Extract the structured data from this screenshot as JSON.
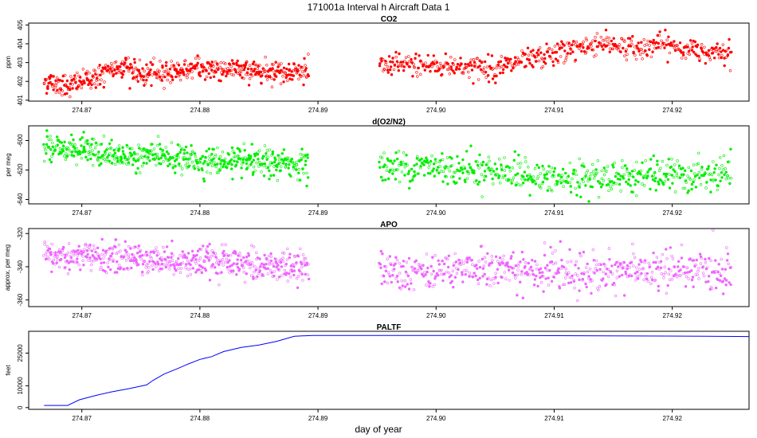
{
  "page_title": "171001a   Interval h Aircraft Data 1",
  "xlabel": "day of year",
  "colors": {
    "co2": "#ff0000",
    "o2n2": "#00ee00",
    "apo": "#ee66ff",
    "paltf": "#0000ff",
    "axis": "#000000"
  },
  "chart_data": [
    {
      "type": "scatter",
      "title": "CO2",
      "ylabel": "ppm",
      "xlim": [
        274.8655,
        274.9265
      ],
      "ylim": [
        400.95,
        405.1
      ],
      "x_ticks": [
        "274.87",
        "274.88",
        "274.89",
        "274.90",
        "274.91",
        "274.92"
      ],
      "x_tick_values": [
        274.87,
        274.88,
        274.89,
        274.9,
        274.91,
        274.92
      ],
      "y_ticks": [
        "401",
        "402",
        "403",
        "404",
        "405"
      ],
      "y_tick_values": [
        401,
        402,
        403,
        404,
        405
      ],
      "series_segments": [
        {
          "x_range": [
            274.8668,
            274.8892
          ],
          "trend_x": [
            274.8668,
            274.869,
            274.872,
            274.8735,
            274.875,
            274.877,
            274.88,
            274.884,
            274.8892
          ],
          "trend_y": [
            402.0,
            401.8,
            402.4,
            402.9,
            402.3,
            402.5,
            402.7,
            402.6,
            402.5
          ],
          "noise": 0.3
        },
        {
          "x_range": [
            274.8952,
            274.925
          ],
          "trend_x": [
            274.8952,
            274.898,
            274.902,
            274.905,
            274.908,
            274.911,
            274.914,
            274.917,
            274.919,
            274.922,
            274.925
          ],
          "trend_y": [
            402.8,
            402.9,
            402.8,
            402.7,
            403.1,
            403.6,
            404.1,
            403.7,
            404.0,
            403.6,
            403.7
          ],
          "noise": 0.3
        }
      ],
      "n_points_per_segment": 540
    },
    {
      "type": "scatter",
      "title": "d(O2/N2)",
      "ylabel": "per meg",
      "xlim": [
        274.8655,
        274.9265
      ],
      "ylim": [
        -643,
        -590
      ],
      "x_ticks": [
        "274.87",
        "274.88",
        "274.89",
        "274.90",
        "274.91",
        "274.92"
      ],
      "x_tick_values": [
        274.87,
        274.88,
        274.89,
        274.9,
        274.91,
        274.92
      ],
      "y_ticks": [
        "-600",
        "-620",
        "-640"
      ],
      "y_tick_values": [
        -600,
        -620,
        -640
      ],
      "series_segments": [
        {
          "x_range": [
            274.8668,
            274.8892
          ],
          "trend_x": [
            274.8668,
            274.869,
            274.873,
            274.876,
            274.88,
            274.884,
            274.8892
          ],
          "trend_y": [
            -605,
            -605,
            -611,
            -610,
            -614,
            -615,
            -616
          ],
          "noise": 4.5
        },
        {
          "x_range": [
            274.8952,
            274.925
          ],
          "trend_x": [
            274.8952,
            274.9,
            274.905,
            274.909,
            274.912,
            274.915,
            274.92,
            274.925
          ],
          "trend_y": [
            -618,
            -618,
            -620,
            -626,
            -627,
            -624,
            -624,
            -624
          ],
          "noise": 5.5
        }
      ],
      "n_points_per_segment": 560
    },
    {
      "type": "scatter",
      "title": "APO",
      "ylabel": "approx. per meg",
      "xlim": [
        274.8655,
        274.9265
      ],
      "ylim": [
        -364,
        -317
      ],
      "x_ticks": [
        "274.87",
        "274.88",
        "274.89",
        "274.90",
        "274.91",
        "274.92"
      ],
      "x_tick_values": [
        274.87,
        274.88,
        274.89,
        274.9,
        274.91,
        274.92
      ],
      "y_ticks": [
        "-320",
        "-340",
        "-360"
      ],
      "y_tick_values": [
        -320,
        -340,
        -360
      ],
      "series_segments": [
        {
          "x_range": [
            274.8668,
            274.8892
          ],
          "trend_x": [
            274.8668,
            274.871,
            274.875,
            274.88,
            274.885,
            274.8892
          ],
          "trend_y": [
            -334,
            -334,
            -335,
            -337,
            -339,
            -340
          ],
          "noise": 4.5
        },
        {
          "x_range": [
            274.8952,
            274.925
          ],
          "trend_x": [
            274.8952,
            274.9,
            274.905,
            274.91,
            274.915,
            274.92,
            274.925
          ],
          "trend_y": [
            -341,
            -342,
            -341,
            -344,
            -343,
            -342,
            -343
          ],
          "noise": 6.0
        }
      ],
      "n_points_per_segment": 560
    },
    {
      "type": "line",
      "title": "PALTF",
      "ylabel": "feet",
      "xlim": [
        274.8655,
        274.9265
      ],
      "ylim": [
        -800,
        35000
      ],
      "x_ticks": [
        "274.87",
        "274.88",
        "274.89",
        "274.90",
        "274.91",
        "274.92"
      ],
      "x_tick_values": [
        274.87,
        274.88,
        274.89,
        274.9,
        274.91,
        274.92
      ],
      "y_ticks": [
        "0",
        "10000",
        "25000"
      ],
      "y_tick_values": [
        0,
        10000,
        25000
      ],
      "x": [
        274.8668,
        274.8688,
        274.8698,
        274.8712,
        274.8725,
        274.874,
        274.8755,
        274.876,
        274.877,
        274.878,
        274.879,
        274.88,
        274.881,
        274.882,
        274.8835,
        274.885,
        274.8865,
        274.888,
        274.8895,
        274.9,
        274.91,
        274.9195,
        274.9265
      ],
      "y": [
        1000,
        1000,
        3600,
        5600,
        7200,
        8700,
        10400,
        12400,
        15500,
        17600,
        20000,
        22100,
        23400,
        25700,
        27600,
        28700,
        30400,
        32700,
        33100,
        33100,
        33000,
        32800,
        32600
      ]
    }
  ]
}
